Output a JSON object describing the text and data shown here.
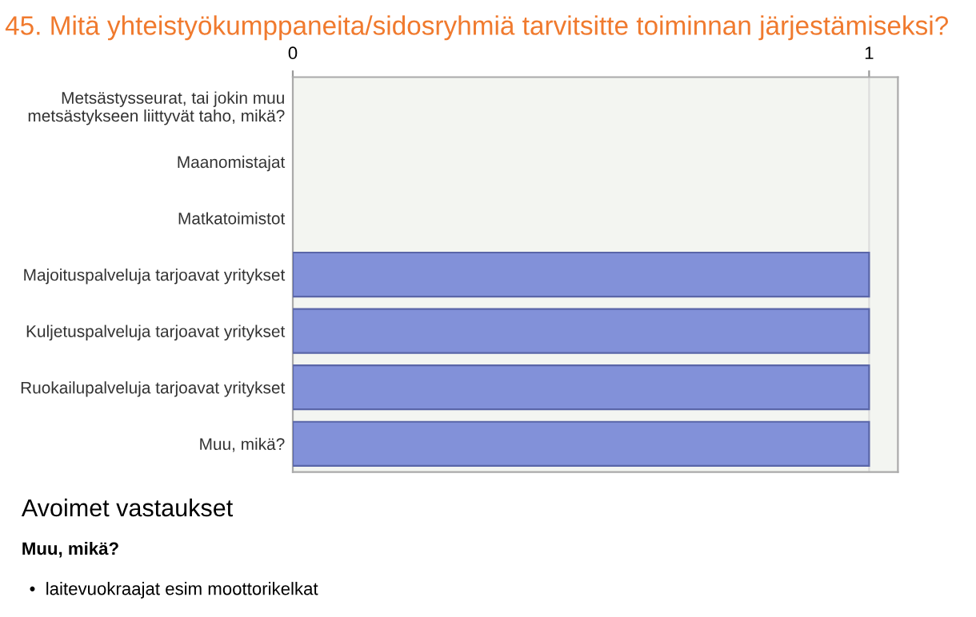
{
  "chart_data": {
    "type": "bar",
    "orientation": "horizontal",
    "title": "45. Mitä yhteistyökumppaneita/sidosryhmiä tarvitsitte toiminnan järjestämiseksi?",
    "categories": [
      "Metsästysseurat, tai jokin muu\nmetsästykseen liittyvät taho, mikä?",
      "Maanomistajat",
      "Matkatoimistot",
      "Majoituspalveluja tarjoavat yritykset",
      "Kuljetuspalveluja tarjoavat yritykset",
      "Ruokailupalveluja tarjoavat yritykset",
      "Muu, mikä?"
    ],
    "values": [
      0,
      0,
      0,
      1,
      1,
      1,
      1
    ],
    "color": "#8291d9",
    "xlim": [
      0,
      1.05
    ],
    "xticks": [
      0,
      1
    ],
    "grid": "x",
    "annotations": [
      "Avoimet vastaukset",
      "Muu, mikä?",
      "•  laitevuokraajat esim moottorikelkat"
    ]
  }
}
